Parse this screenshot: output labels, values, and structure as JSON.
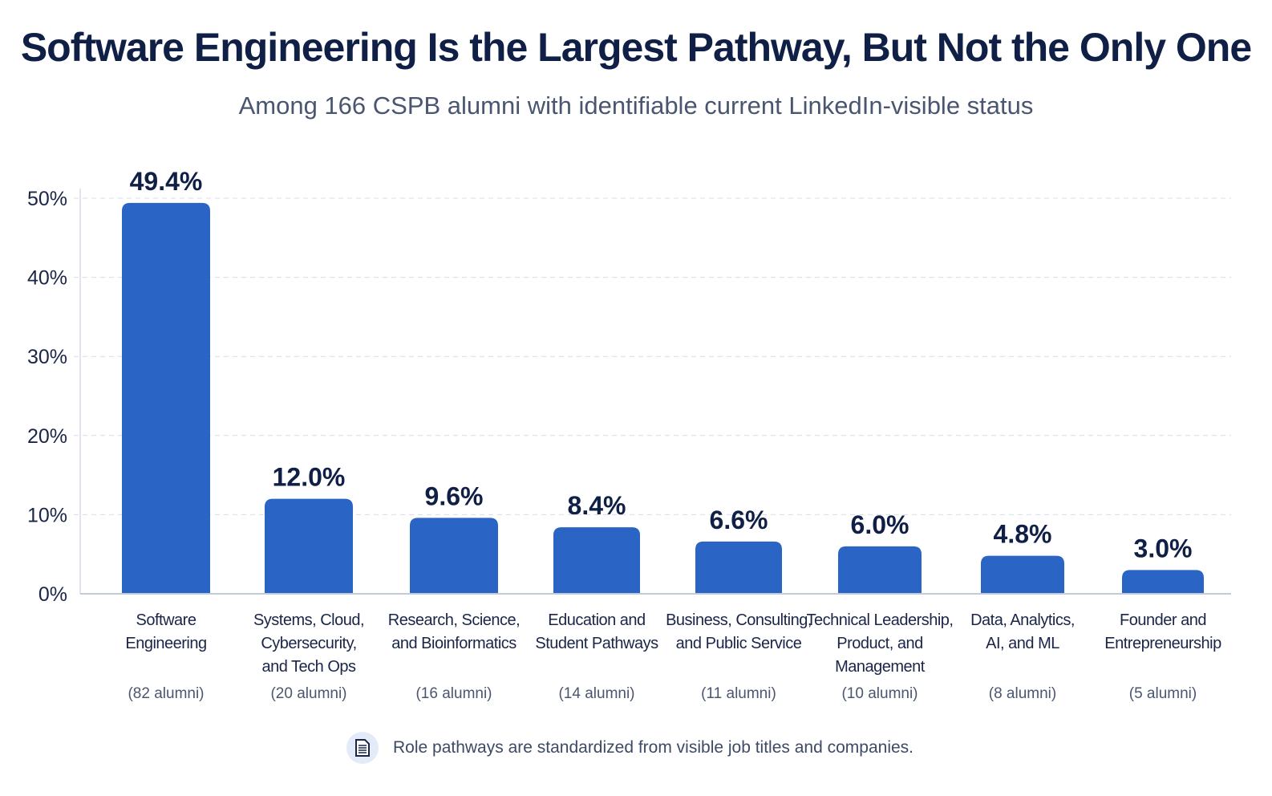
{
  "chart_data": {
    "type": "bar",
    "title": "Software Engineering Is the Largest Pathway, But Not the Only One",
    "subtitle": "Among 166 CSPB alumni with identifiable current LinkedIn-visible status",
    "categories": [
      [
        "Software",
        "Engineering"
      ],
      [
        "Systems, Cloud,",
        "Cybersecurity,",
        "and Tech Ops"
      ],
      [
        "Research, Science,",
        "and Bioinformatics"
      ],
      [
        "Education and",
        "Student Pathways"
      ],
      [
        "Business, Consulting,",
        "and Public Service"
      ],
      [
        "Technical Leadership,",
        "Product, and",
        "Management"
      ],
      [
        "Data, Analytics,",
        "AI, and ML"
      ],
      [
        "Founder and",
        "Entrepreneurship"
      ]
    ],
    "counts": [
      "(82 alumni)",
      "(20 alumni)",
      "(16 alumni)",
      "(14 alumni)",
      "(11 alumni)",
      "(10 alumni)",
      "(8 alumni)",
      "(5 alumni)"
    ],
    "values": [
      49.4,
      12.0,
      9.6,
      8.4,
      6.6,
      6.0,
      4.8,
      3.0
    ],
    "data_labels": [
      "49.4%",
      "12.0%",
      "9.6%",
      "8.4%",
      "6.6%",
      "6.0%",
      "4.8%",
      "3.0%"
    ],
    "yticks": [
      "0%",
      "10%",
      "20%",
      "30%",
      "40%",
      "50%"
    ],
    "ylim": [
      0,
      50
    ],
    "grid": true,
    "bar_color": "#2a64c4",
    "xlabel": "",
    "ylabel": ""
  },
  "footnote": {
    "icon": "document-icon",
    "text": "Role pathways are standardized from visible job titles and companies."
  }
}
